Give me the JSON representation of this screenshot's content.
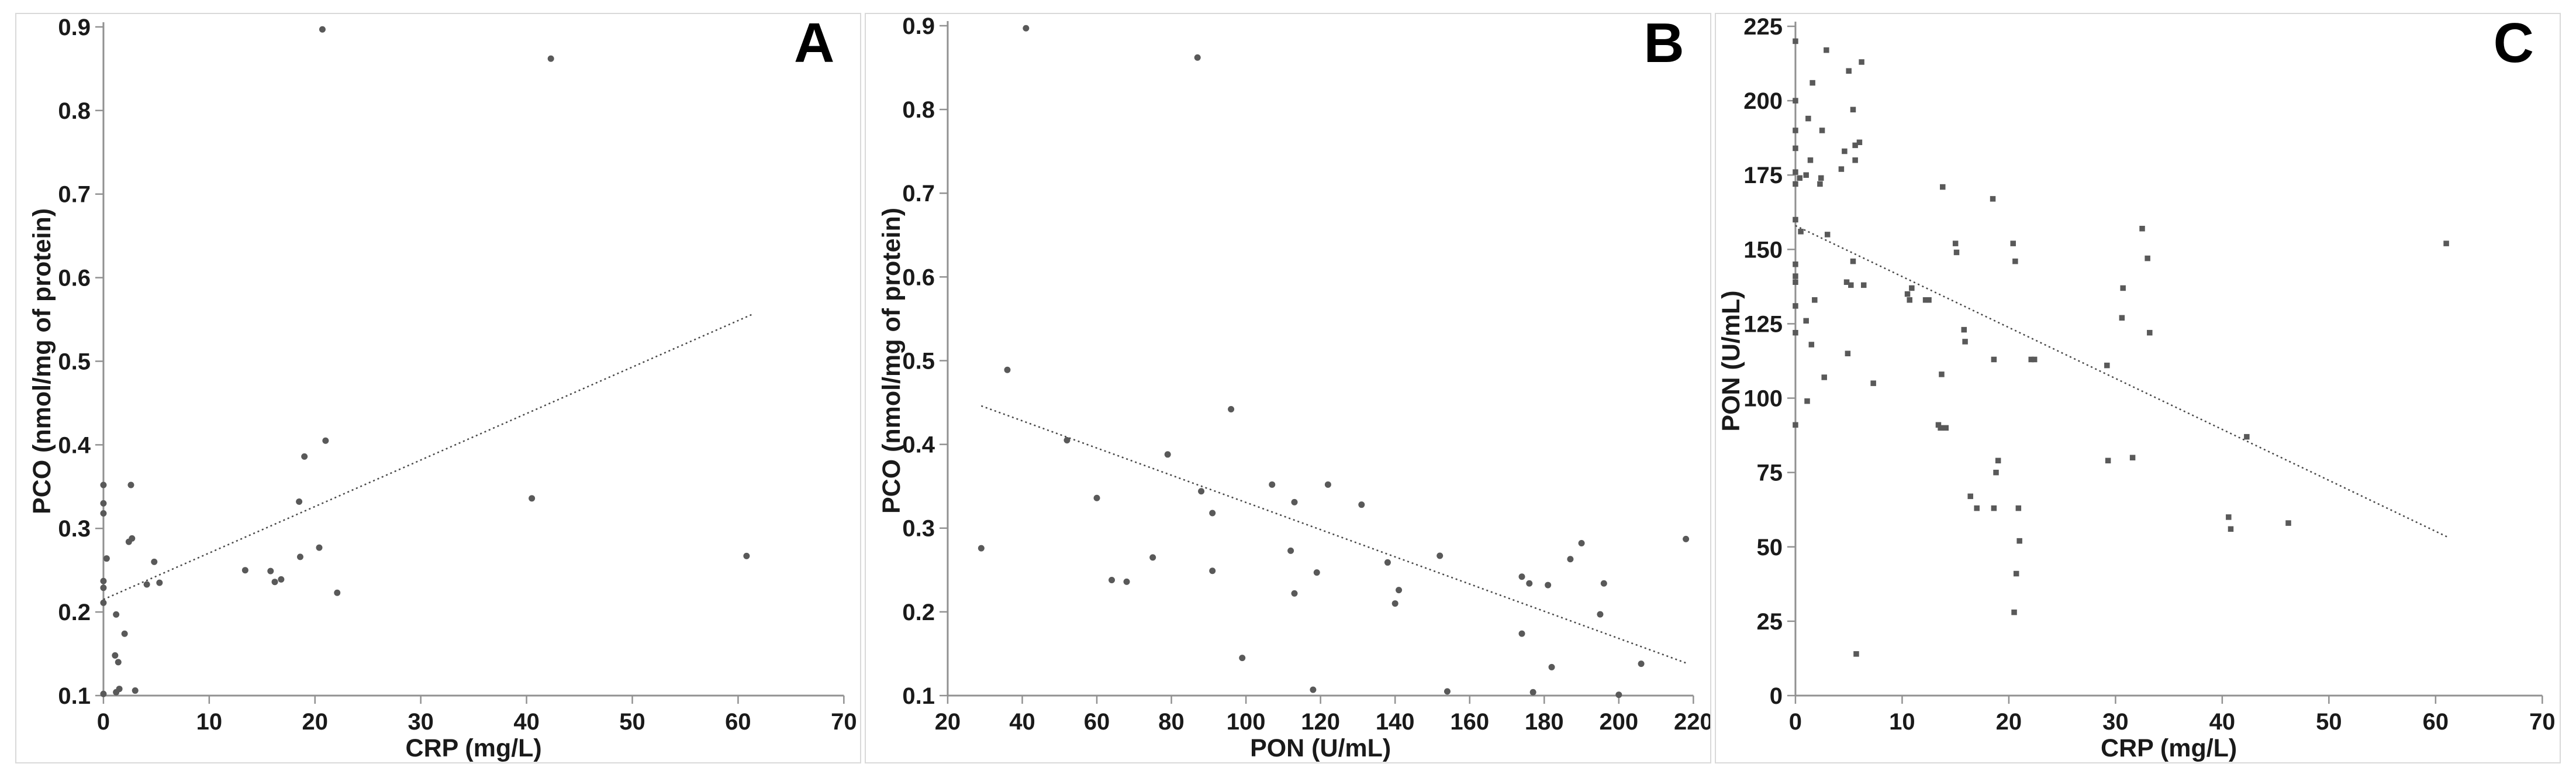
{
  "style": {
    "marker_color": "#595959",
    "trend_color": "#474747",
    "axis_color": "#919191",
    "text_color": "#1a1a1a",
    "panel_border_color": "#d9d9d9",
    "background": "#ffffff"
  },
  "chart_data": [
    {
      "type": "scatter",
      "panel_label": "A",
      "title": "",
      "xlabel": "CRP (mg/L)",
      "ylabel": "PCO (nmol/mg of protein)",
      "xlim": [
        0,
        70
      ],
      "ylim": [
        0.1,
        0.9
      ],
      "grid": false,
      "legend": null,
      "marker": "circle",
      "xticks": {
        "values": [
          0,
          10,
          20,
          30,
          40,
          50,
          60,
          70
        ],
        "labels": [
          "0",
          "10",
          "20",
          "30",
          "40",
          "50",
          "60",
          "70"
        ]
      },
      "yticks": {
        "values": [
          0.1,
          0.2,
          0.3,
          0.4,
          0.5,
          0.6,
          0.7,
          0.8,
          0.9
        ],
        "labels": [
          "0.1",
          "0.2",
          "0.3",
          "0.4",
          "0.5",
          "0.6",
          "0.7",
          "0.8",
          "0.9"
        ]
      },
      "points": [
        [
          20.7,
          0.897
        ],
        [
          42.3,
          0.862
        ],
        [
          0,
          0.352
        ],
        [
          2.6,
          0.352
        ],
        [
          0,
          0.33
        ],
        [
          0,
          0.318
        ],
        [
          2.4,
          0.284
        ],
        [
          2.7,
          0.288
        ],
        [
          0.3,
          0.264
        ],
        [
          4.8,
          0.26
        ],
        [
          0,
          0.237
        ],
        [
          0,
          0.229
        ],
        [
          4.1,
          0.233
        ],
        [
          5.3,
          0.235
        ],
        [
          0,
          0.211
        ],
        [
          1.2,
          0.197
        ],
        [
          2.0,
          0.174
        ],
        [
          1.1,
          0.148
        ],
        [
          1.4,
          0.14
        ],
        [
          0,
          0.102
        ],
        [
          1.2,
          0.104
        ],
        [
          1.5,
          0.108
        ],
        [
          3.0,
          0.106
        ],
        [
          13.4,
          0.25
        ],
        [
          15.8,
          0.249
        ],
        [
          16.2,
          0.236
        ],
        [
          16.8,
          0.239
        ],
        [
          18.5,
          0.332
        ],
        [
          19.0,
          0.386
        ],
        [
          18.6,
          0.266
        ],
        [
          20.4,
          0.277
        ],
        [
          21.0,
          0.405
        ],
        [
          22.1,
          0.223
        ],
        [
          40.5,
          0.336
        ],
        [
          60.8,
          0.267
        ]
      ],
      "trendline": {
        "style": "dotted",
        "x1": 0,
        "y1": 0.215,
        "x2": 61.5,
        "y2": 0.557
      }
    },
    {
      "type": "scatter",
      "panel_label": "B",
      "title": "",
      "xlabel": "PON (U/mL)",
      "ylabel": "PCO (nmol/mg of protein)",
      "xlim": [
        20,
        220
      ],
      "ylim": [
        0.1,
        0.9
      ],
      "grid": false,
      "legend": null,
      "marker": "circle",
      "xticks": {
        "values": [
          20,
          40,
          60,
          80,
          100,
          120,
          140,
          160,
          180,
          200,
          220
        ],
        "labels": [
          "20",
          "40",
          "60",
          "80",
          "100",
          "120",
          "140",
          "160",
          "180",
          "200",
          "220"
        ]
      },
      "yticks": {
        "values": [
          0.1,
          0.2,
          0.3,
          0.4,
          0.5,
          0.6,
          0.7,
          0.8,
          0.9
        ],
        "labels": [
          "0.1",
          "0.2",
          "0.3",
          "0.4",
          "0.5",
          "0.6",
          "0.7",
          "0.8",
          "0.9"
        ]
      },
      "points": [
        [
          41,
          0.897
        ],
        [
          87,
          0.862
        ],
        [
          36,
          0.489
        ],
        [
          96,
          0.442
        ],
        [
          52,
          0.405
        ],
        [
          79,
          0.388
        ],
        [
          60,
          0.336
        ],
        [
          88,
          0.344
        ],
        [
          91,
          0.318
        ],
        [
          107,
          0.352
        ],
        [
          122,
          0.352
        ],
        [
          113,
          0.331
        ],
        [
          131,
          0.328
        ],
        [
          29,
          0.276
        ],
        [
          64,
          0.238
        ],
        [
          68,
          0.236
        ],
        [
          75,
          0.265
        ],
        [
          91,
          0.249
        ],
        [
          112,
          0.273
        ],
        [
          113,
          0.222
        ],
        [
          119,
          0.247
        ],
        [
          138,
          0.259
        ],
        [
          141,
          0.226
        ],
        [
          140,
          0.21
        ],
        [
          152,
          0.267
        ],
        [
          99,
          0.145
        ],
        [
          118,
          0.107
        ],
        [
          154,
          0.105
        ],
        [
          174,
          0.242
        ],
        [
          176,
          0.234
        ],
        [
          181,
          0.232
        ],
        [
          174,
          0.174
        ],
        [
          177,
          0.104
        ],
        [
          182,
          0.134
        ],
        [
          187,
          0.263
        ],
        [
          190,
          0.282
        ],
        [
          195,
          0.197
        ],
        [
          196,
          0.234
        ],
        [
          200,
          0.101
        ],
        [
          206,
          0.138
        ],
        [
          218,
          0.287
        ]
      ],
      "trendline": {
        "style": "dotted",
        "x1": 29,
        "y1": 0.446,
        "x2": 218,
        "y2": 0.139
      }
    },
    {
      "type": "scatter",
      "panel_label": "C",
      "title": "",
      "xlabel": "CRP (mg/L)",
      "ylabel": "PON (U/mL)",
      "xlim": [
        0,
        70
      ],
      "ylim": [
        0,
        225
      ],
      "grid": false,
      "legend": null,
      "marker": "square",
      "xticks": {
        "values": [
          0,
          10,
          20,
          30,
          40,
          50,
          60,
          70
        ],
        "labels": [
          "0",
          "10",
          "20",
          "30",
          "40",
          "50",
          "60",
          "70"
        ]
      },
      "yticks": {
        "values": [
          0,
          25,
          50,
          75,
          100,
          125,
          150,
          175,
          200,
          225
        ],
        "labels": [
          "0",
          "25",
          "50",
          "75",
          "100",
          "125",
          "150",
          "175",
          "200",
          "225"
        ]
      },
      "points": [
        [
          0,
          220
        ],
        [
          2.9,
          217
        ],
        [
          6.2,
          213
        ],
        [
          5.0,
          210
        ],
        [
          1.6,
          206
        ],
        [
          0,
          200
        ],
        [
          5.4,
          197
        ],
        [
          1.2,
          194
        ],
        [
          2.5,
          190
        ],
        [
          0,
          190
        ],
        [
          0,
          184
        ],
        [
          4.6,
          183
        ],
        [
          5.6,
          185
        ],
        [
          6.0,
          186
        ],
        [
          5.6,
          180
        ],
        [
          1.4,
          180
        ],
        [
          4.3,
          177
        ],
        [
          0,
          176
        ],
        [
          0.4,
          174
        ],
        [
          1.0,
          175
        ],
        [
          2.4,
          174
        ],
        [
          0,
          172
        ],
        [
          2.3,
          172
        ],
        [
          13.8,
          171
        ],
        [
          18.5,
          167
        ],
        [
          0,
          160
        ],
        [
          0.5,
          156
        ],
        [
          3.0,
          155
        ],
        [
          32.5,
          157
        ],
        [
          15.0,
          152
        ],
        [
          20.4,
          152
        ],
        [
          61.0,
          152
        ],
        [
          15.1,
          149
        ],
        [
          5.4,
          146
        ],
        [
          20.6,
          146
        ],
        [
          33.0,
          147
        ],
        [
          0,
          145
        ],
        [
          0,
          141
        ],
        [
          0,
          139
        ],
        [
          4.8,
          139
        ],
        [
          5.2,
          138
        ],
        [
          6.4,
          138
        ],
        [
          10.9,
          137
        ],
        [
          30.7,
          137
        ],
        [
          0,
          131
        ],
        [
          1.8,
          133
        ],
        [
          10.5,
          135
        ],
        [
          10.7,
          133
        ],
        [
          12.2,
          133
        ],
        [
          12.5,
          133
        ],
        [
          1.0,
          126
        ],
        [
          30.6,
          127
        ],
        [
          0,
          122
        ],
        [
          15.8,
          123
        ],
        [
          33.2,
          122
        ],
        [
          1.5,
          118
        ],
        [
          15.9,
          119
        ],
        [
          4.9,
          115
        ],
        [
          18.6,
          113
        ],
        [
          22.1,
          113
        ],
        [
          22.4,
          113
        ],
        [
          29.2,
          111
        ],
        [
          2.7,
          107
        ],
        [
          13.7,
          108
        ],
        [
          7.3,
          105
        ],
        [
          1.1,
          99
        ],
        [
          0,
          91
        ],
        [
          13.4,
          91
        ],
        [
          13.6,
          90
        ],
        [
          14.1,
          90
        ],
        [
          42.3,
          87
        ],
        [
          19.0,
          79
        ],
        [
          29.3,
          79
        ],
        [
          31.6,
          80
        ],
        [
          18.8,
          75
        ],
        [
          16.4,
          67
        ],
        [
          17.0,
          63
        ],
        [
          18.6,
          63
        ],
        [
          20.9,
          63
        ],
        [
          40.6,
          60
        ],
        [
          40.8,
          56
        ],
        [
          46.2,
          58
        ],
        [
          21.0,
          52
        ],
        [
          20.7,
          41
        ],
        [
          20.5,
          28
        ],
        [
          5.7,
          14
        ]
      ],
      "trendline": {
        "style": "dotted",
        "x1": 0,
        "y1": 158,
        "x2": 61.3,
        "y2": 53
      }
    }
  ]
}
